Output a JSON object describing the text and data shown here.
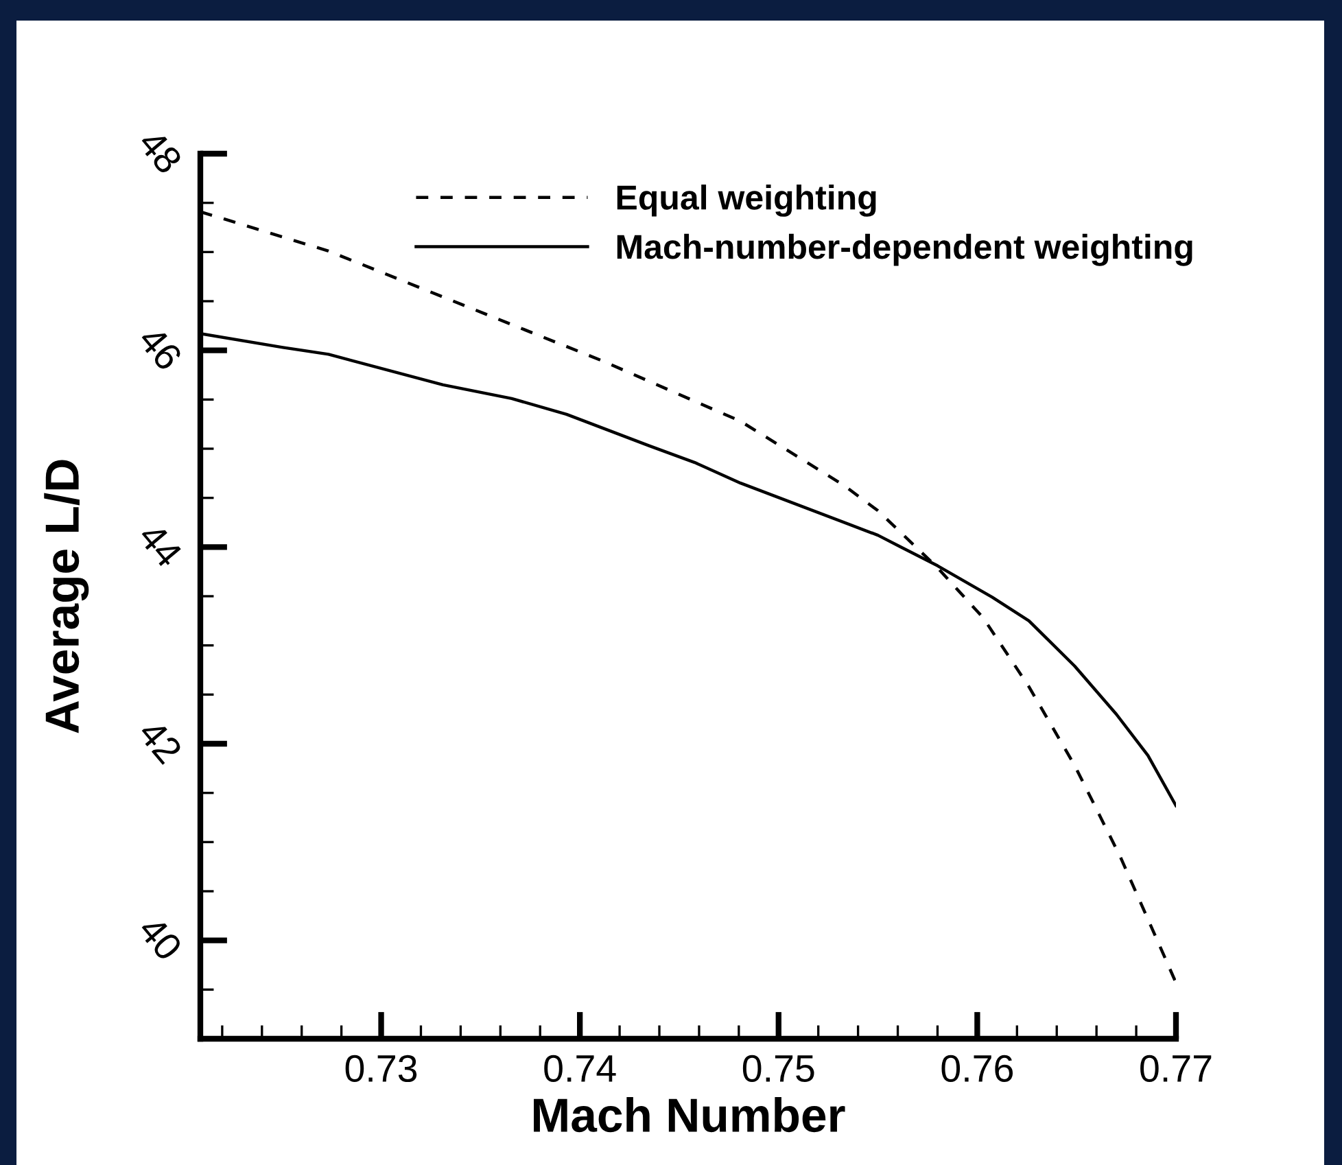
{
  "chart_data": {
    "type": "line",
    "xlabel": "Mach Number",
    "ylabel": "Average L/D",
    "xlim": [
      0.7209,
      0.77
    ],
    "xticks": [
      0.73,
      0.74,
      0.75,
      0.76,
      0.77
    ],
    "ylim": [
      39,
      48
    ],
    "yticks": [
      40,
      42,
      44,
      46,
      48
    ],
    "grid": false,
    "legend": "top",
    "marker": "none",
    "series": [
      {
        "name": "Equal weighting",
        "color": "#000000",
        "line_style": "dashed",
        "x": [
          0.7209,
          0.72735,
          0.73426,
          0.74117,
          0.74808,
          0.75327,
          0.755,
          0.758,
          0.7603,
          0.7626,
          0.7649,
          0.7672,
          0.77
        ],
        "values": [
          47.41,
          47.01,
          46.45,
          45.89,
          45.28,
          44.63,
          44.37,
          43.79,
          43.28,
          42.58,
          41.78,
          40.85,
          39.57
        ]
      },
      {
        "name": "Mach-number-dependent weighting",
        "color": "#000000",
        "line_style": "solid",
        "x": [
          0.7209,
          0.72505,
          0.72735,
          0.73311,
          0.73657,
          0.73933,
          0.74348,
          0.74578,
          0.74809,
          0.755,
          0.75615,
          0.758,
          0.76075,
          0.7626,
          0.7649,
          0.767,
          0.76859,
          0.77
        ],
        "values": [
          46.17,
          46.03,
          45.96,
          45.65,
          45.51,
          45.35,
          45.03,
          44.86,
          44.65,
          44.12,
          44.0,
          43.81,
          43.49,
          43.25,
          42.79,
          42.3,
          41.88,
          41.37
        ]
      }
    ]
  }
}
